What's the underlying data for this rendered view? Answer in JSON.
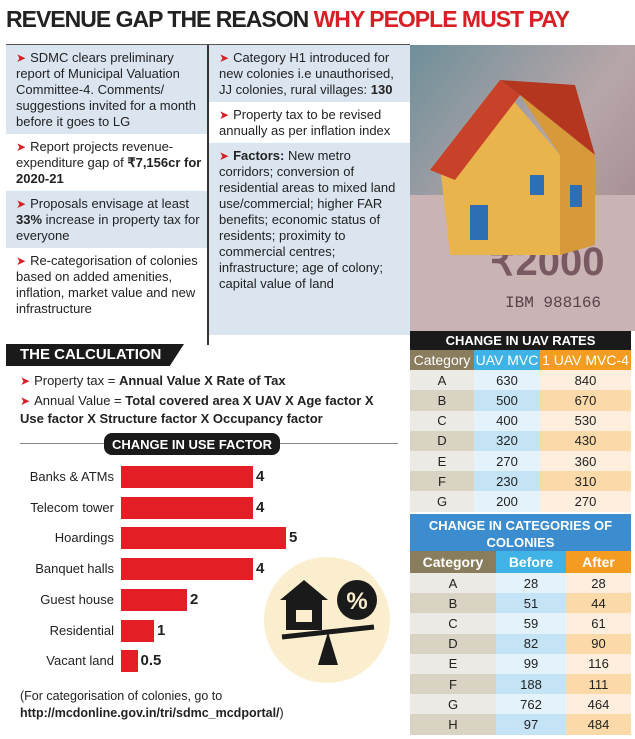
{
  "title": {
    "part1": "REVENUE GAP THE REASON ",
    "part2": "WHY PEOPLE MUST PAY"
  },
  "bullets_left": [
    {
      "text": "SDMC clears preliminary report of Municipal Valuation Committee-4. Comments/ suggestions invited for a month before it goes to LG"
    },
    {
      "text": "Report projects revenue-expenditure gap of ",
      "bold": "₹7,156cr for 2020-21"
    },
    {
      "pre": "Proposals envisage at least ",
      "bold": "33%",
      "post": " increase in property tax for everyone"
    },
    {
      "text": "Re-categorisation of colonies based on added amenities, inflation, market value and new infrastructure"
    }
  ],
  "bullets_right": [
    {
      "text": "Category H1 introduced for new colonies i.e unauthorised, JJ colonies, rural villages: ",
      "bold": "130"
    },
    {
      "text": "Property tax to be revised annually as per inflation index"
    },
    {
      "bold": "Factors:",
      "text": " New metro corridors; conversion of residential areas to mixed land use/commercial; higher FAR benefits; economic status of residents; proximity to commercial centres; infrastructure; age of colony; capital value of land"
    }
  ],
  "photo": {
    "note_text": "₹2000",
    "serial": "IBM 988166"
  },
  "calculation": {
    "heading": "THE CALCULATION",
    "line1_pre": "Property tax = ",
    "line1_bold": "Annual Value X Rate of Tax",
    "line2_pre": "Annual Value = ",
    "line2_bold": "Total covered area X UAV X Age factor X Use factor X Structure factor X Occupancy factor"
  },
  "chart_data": {
    "type": "bar",
    "orientation": "horizontal",
    "title": "CHANGE IN USE FACTOR",
    "categories": [
      "Banks & ATMs",
      "Telecom tower",
      "Hoardings",
      "Banquet halls",
      "Guest house",
      "Residential",
      "Vacant land"
    ],
    "values": [
      4,
      4,
      5,
      4,
      2,
      1,
      0.5
    ],
    "value_labels": [
      "4",
      "4",
      "5",
      "4",
      "2",
      "1",
      "0.5"
    ],
    "color": "#e31e24"
  },
  "footnote": {
    "pre": "(For categorisation of colonies, go to ",
    "bold": "http://mcdonline.gov.in/tri/sdmc_mcdportal/",
    "post": ")"
  },
  "uav_table": {
    "title": "CHANGE IN UAV RATES",
    "headers": [
      "Category",
      "UAV MVC",
      "1 UAV MVC-4"
    ],
    "rows": [
      [
        "A",
        "630",
        "840"
      ],
      [
        "B",
        "500",
        "670"
      ],
      [
        "C",
        "400",
        "530"
      ],
      [
        "D",
        "320",
        "430"
      ],
      [
        "E",
        "270",
        "360"
      ],
      [
        "F",
        "230",
        "310"
      ],
      [
        "G",
        "200",
        "270"
      ]
    ]
  },
  "colonies_table": {
    "title": "CHANGE IN CATEGORIES OF COLONIES",
    "headers": [
      "Category",
      "Before",
      "After"
    ],
    "rows": [
      [
        "A",
        "28",
        "28"
      ],
      [
        "B",
        "51",
        "44"
      ],
      [
        "C",
        "59",
        "61"
      ],
      [
        "D",
        "82",
        "90"
      ],
      [
        "E",
        "99",
        "116"
      ],
      [
        "F",
        "188",
        "111"
      ],
      [
        "G",
        "762",
        "464"
      ],
      [
        "H",
        "97",
        "484"
      ]
    ]
  },
  "colors": {
    "accent_red": "#d91f26",
    "blue_band": "#dbe5f0",
    "header_blue": "#3fb3e6",
    "header_orange": "#f39c21",
    "header_khaki": "#8a7d5e"
  }
}
